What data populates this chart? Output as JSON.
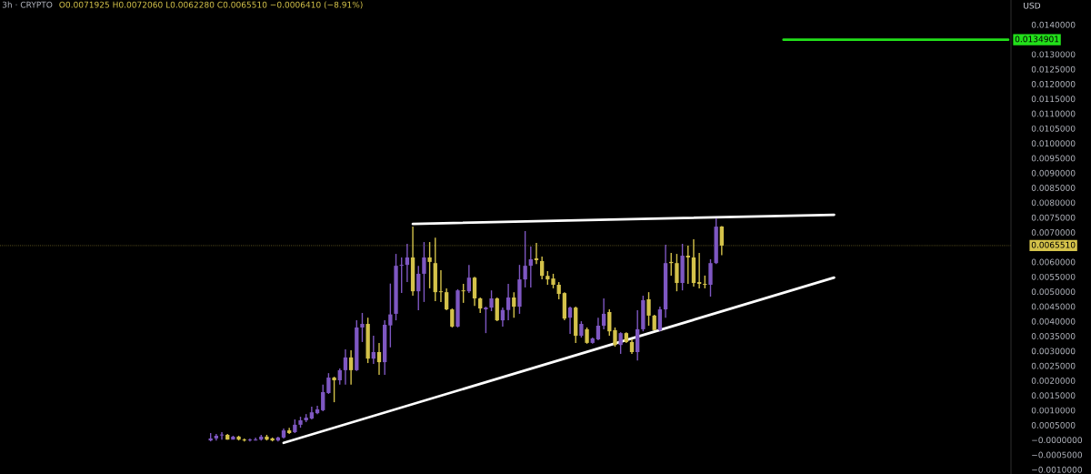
{
  "chart_data": {
    "type": "candlestick",
    "title": "3h · CRYPTO",
    "subtitle": "O0.0071925 H0.0072060 L0.0062280 C0.0065510 −0.0006410 (−8.91%)",
    "ylabel": "USD",
    "categories": [
      null,
      null,
      null,
      null,
      null,
      null,
      null,
      null,
      null,
      null,
      null,
      null,
      null,
      null,
      null,
      null,
      null,
      null,
      null,
      null,
      null,
      null,
      null,
      null,
      null,
      null,
      null,
      null,
      null,
      null,
      null,
      null,
      null,
      null,
      null,
      null,
      null,
      null,
      null,
      null,
      null,
      null,
      null,
      null,
      null,
      null,
      null,
      null,
      null,
      null,
      null,
      null,
      null,
      null,
      null,
      null,
      null,
      null,
      null,
      null,
      null,
      null,
      null,
      null,
      null,
      null,
      null,
      null,
      null,
      null,
      null,
      null,
      null,
      null,
      null,
      null,
      null,
      null,
      null,
      null,
      null,
      null,
      null,
      null,
      null,
      null,
      null,
      null,
      null,
      null,
      null,
      null,
      null,
      null,
      null,
      null,
      null,
      null,
      null,
      null,
      null,
      null,
      null,
      null,
      null,
      null,
      null,
      null,
      null,
      null,
      null,
      null,
      null,
      null,
      null,
      null,
      null,
      null,
      null,
      null,
      null,
      null,
      null,
      null,
      null,
      null,
      null,
      null,
      null,
      null,
      null,
      null,
      null,
      null,
      null,
      null,
      null,
      null,
      null,
      null,
      null,
      null,
      null,
      null,
      null,
      null,
      null,
      null,
      null,
      null,
      null,
      null,
      null,
      null,
      null,
      null,
      null,
      null,
      null,
      null,
      null,
      null,
      null,
      null,
      null,
      null,
      null,
      null,
      null,
      null,
      null,
      null,
      null,
      null,
      null,
      null,
      null,
      null,
      null,
      null
    ],
    "ohlc": [
      null,
      null,
      null,
      null,
      null,
      null,
      null,
      null,
      null,
      null,
      null,
      null,
      null,
      null,
      null,
      null,
      null,
      null,
      null,
      null,
      null,
      null,
      null,
      null,
      null,
      null,
      null,
      null,
      null,
      null,
      null,
      null,
      null,
      null,
      null,
      null,
      null,
      [
        -2e-05,
        0.00023,
        -5e-05,
        5e-05
      ],
      [
        5e-05,
        0.0002,
        -2e-05,
        0.00014
      ],
      [
        0.00015,
        0.00026,
        1e-05,
        0.00018
      ],
      [
        0.00017,
        0.0002,
        1e-05,
        1e-05
      ],
      [
        1e-05,
        0.00014,
        1e-05,
        0.00011
      ],
      [
        0.00011,
        0.00014,
        -2e-05,
        1e-05
      ],
      [
        1e-05,
        5e-05,
        -5e-05,
        -2e-05
      ],
      [
        -2e-05,
        5e-05,
        -5e-05,
        1e-05
      ],
      [
        -2e-05,
        8e-05,
        -2e-05,
        1e-05
      ],
      [
        1e-05,
        0.00017,
        -2e-05,
        0.00011
      ],
      [
        0.00011,
        0.00017,
        -2e-05,
        1e-05
      ],
      [
        5e-05,
        8e-05,
        -5e-05,
        -2e-05
      ],
      [
        -2e-05,
        0.00011,
        -5e-05,
        8e-05
      ],
      [
        8e-05,
        0.00038,
        5e-05,
        0.00032
      ],
      [
        0.00032,
        0.00041,
        0.0002,
        0.00023
      ],
      [
        0.00026,
        0.00069,
        0.00023,
        0.00051
      ],
      [
        0.00051,
        0.00078,
        0.00041,
        0.00066
      ],
      [
        0.00066,
        0.00087,
        0.0006,
        0.00075
      ],
      [
        0.00072,
        0.00112,
        0.00069,
        0.00093
      ],
      [
        0.0009,
        0.00115,
        0.00087,
        0.00103
      ],
      [
        0.001,
        0.00186,
        0.00097,
        0.00161
      ],
      [
        0.00158,
        0.00225,
        0.00155,
        0.0021
      ],
      [
        0.0021,
        0.00213,
        0.00127,
        0.00201
      ],
      [
        0.00201,
        0.00241,
        0.00186,
        0.00235
      ],
      [
        0.00235,
        0.00305,
        0.00186,
        0.00278
      ],
      [
        0.00278,
        0.00302,
        0.00186,
        0.00235
      ],
      [
        0.00235,
        0.00403,
        0.00232,
        0.00379
      ],
      [
        0.00379,
        0.00428,
        0.0033,
        0.00391
      ],
      [
        0.00391,
        0.00412,
        0.00259,
        0.00274
      ],
      [
        0.00274,
        0.00351,
        0.00256,
        0.00296
      ],
      [
        0.00296,
        0.00327,
        0.00219,
        0.00262
      ],
      [
        0.00262,
        0.00403,
        0.00219,
        0.00388
      ],
      [
        0.00386,
        0.00527,
        0.00312,
        0.00423
      ],
      [
        0.00425,
        0.00627,
        0.00403,
        0.00587
      ],
      [
        0.00587,
        0.00615,
        0.00495,
        0.0059
      ],
      [
        0.0059,
        0.00661,
        0.00532,
        0.00615
      ],
      [
        0.00615,
        0.00719,
        0.00486,
        0.00501
      ],
      [
        0.00501,
        0.00587,
        0.00437,
        0.0056
      ],
      [
        0.0056,
        0.00667,
        0.00465,
        0.00615
      ],
      [
        0.00615,
        0.00667,
        0.00511,
        0.006
      ],
      [
        0.00596,
        0.00682,
        0.00468,
        0.00498
      ],
      [
        0.00501,
        0.00572,
        0.00465,
        0.00498
      ],
      [
        0.00498,
        0.00511,
        0.00437,
        0.0044
      ],
      [
        0.0044,
        0.00443,
        0.00379,
        0.00382
      ],
      [
        0.00382,
        0.00508,
        0.00379,
        0.00504
      ],
      [
        0.00504,
        0.00526,
        0.00462,
        0.00501
      ],
      [
        0.00501,
        0.0059,
        0.00495,
        0.00547
      ],
      [
        0.00547,
        0.0055,
        0.00452,
        0.00477
      ],
      [
        0.00477,
        0.0048,
        0.00428,
        0.00443
      ],
      [
        0.0044,
        0.00449,
        0.0036,
        0.00446
      ],
      [
        0.00446,
        0.00504,
        0.00434,
        0.00477
      ],
      [
        0.00477,
        0.0048,
        0.004,
        0.00403
      ],
      [
        0.00403,
        0.00446,
        0.00382,
        0.00438
      ],
      [
        0.00438,
        0.00526,
        0.00403,
        0.0048
      ],
      [
        0.0048,
        0.00498,
        0.00412,
        0.00449
      ],
      [
        0.00449,
        0.0059,
        0.00425,
        0.00541
      ],
      [
        0.00541,
        0.00704,
        0.00514,
        0.00587
      ],
      [
        0.00587,
        0.00652,
        0.00514,
        0.00609
      ],
      [
        0.00612,
        0.00664,
        0.00593,
        0.00606
      ],
      [
        0.00603,
        0.00618,
        0.00541,
        0.00553
      ],
      [
        0.00553,
        0.00569,
        0.00523,
        0.00541
      ],
      [
        0.00544,
        0.0056,
        0.00511,
        0.00523
      ],
      [
        0.00523,
        0.00532,
        0.00474,
        0.00492
      ],
      [
        0.00495,
        0.00498,
        0.00403,
        0.00409
      ],
      [
        0.00412,
        0.00449,
        0.00357,
        0.00446
      ],
      [
        0.00446,
        0.00449,
        0.00327,
        0.00351
      ],
      [
        0.00351,
        0.004,
        0.00345,
        0.00391
      ],
      [
        0.00373,
        0.00379,
        0.00324,
        0.00327
      ],
      [
        0.00327,
        0.00345,
        0.00324,
        0.00342
      ],
      [
        0.00339,
        0.00412,
        0.00336,
        0.00385
      ],
      [
        0.00385,
        0.00477,
        0.00373,
        0.00425
      ],
      [
        0.00431,
        0.0044,
        0.00351,
        0.00366
      ],
      [
        0.0037,
        0.00379,
        0.00314,
        0.0032
      ],
      [
        0.0032,
        0.00363,
        0.0029,
        0.0036
      ],
      [
        0.0036,
        0.00363,
        0.00327,
        0.0033
      ],
      [
        0.0033,
        0.00339,
        0.0029,
        0.00296
      ],
      [
        0.00296,
        0.00437,
        0.00268,
        0.00373
      ],
      [
        0.00373,
        0.00486,
        0.00366,
        0.00471
      ],
      [
        0.00474,
        0.00498,
        0.00385,
        0.00419
      ],
      [
        0.00419,
        0.00422,
        0.0037,
        0.0037
      ],
      [
        0.0037,
        0.00449,
        0.00366,
        0.0044
      ],
      [
        0.0044,
        0.00658,
        0.00412,
        0.00596
      ],
      [
        0.006,
        0.0063,
        0.00554,
        0.00596
      ],
      [
        0.00596,
        0.00627,
        0.00501,
        0.00529
      ],
      [
        0.00529,
        0.00661,
        0.00504,
        0.00621
      ],
      [
        0.00621,
        0.00655,
        0.00526,
        0.00615
      ],
      [
        0.00615,
        0.00676,
        0.00517,
        0.00529
      ],
      [
        0.00532,
        0.0063,
        0.00511,
        0.00526
      ],
      [
        0.00526,
        0.00554,
        0.00511,
        0.00523
      ],
      [
        0.00523,
        0.00609,
        0.00483,
        0.00596
      ],
      [
        0.00596,
        0.00747,
        0.00593,
        0.00719
      ],
      [
        0.0071925,
        0.007206,
        0.006228,
        0.006551
      ],
      null,
      null,
      null,
      null,
      null,
      null,
      null,
      null,
      null,
      null,
      null,
      null,
      null,
      null,
      null,
      null,
      null,
      null,
      null,
      null,
      null,
      null,
      null,
      null,
      null,
      null,
      null,
      null,
      null,
      null,
      null,
      null,
      null,
      null,
      null,
      null,
      null,
      null,
      null,
      null,
      null,
      null,
      null,
      null,
      null,
      null,
      null,
      null,
      null,
      null,
      null
    ],
    "colors": [
      null,
      null,
      null,
      null,
      null,
      null,
      null,
      null,
      null,
      null,
      null,
      null,
      null,
      null,
      null,
      null,
      null,
      null,
      null,
      null,
      null,
      null,
      null,
      null,
      null,
      null,
      null,
      null,
      null,
      null,
      null,
      null,
      null,
      null,
      null,
      null,
      null,
      "#7e57c2",
      "#7e57c2",
      "#7e57c2",
      "#d4c24a",
      "#7e57c2",
      "#d4c24a",
      "#d4c24a",
      "#7e57c2",
      "#7e57c2",
      "#7e57c2",
      "#d4c24a",
      "#d4c24a",
      "#7e57c2",
      "#7e57c2",
      "#d4c24a",
      "#7e57c2",
      "#7e57c2",
      "#7e57c2",
      "#7e57c2",
      "#7e57c2",
      "#7e57c2",
      "#7e57c2",
      "#d4c24a",
      "#7e57c2",
      "#7e57c2",
      "#d4c24a",
      "#7e57c2",
      "#7e57c2",
      "#d4c24a",
      "#7e57c2",
      "#d4c24a",
      "#7e57c2",
      "#7e57c2",
      "#7e57c2",
      "#7e57c2",
      "#7e57c2",
      "#d4c24a",
      "#7e57c2",
      "#7e57c2",
      "#d4c24a",
      "#d4c24a",
      "#d4c24a",
      "#d4c24a",
      "#d4c24a",
      "#7e57c2",
      "#d4c24a",
      "#7e57c2",
      "#d4c24a",
      "#d4c24a",
      "#7e57c2",
      "#7e57c2",
      "#d4c24a",
      "#7e57c2",
      "#7e57c2",
      "#d4c24a",
      "#7e57c2",
      "#7e57c2",
      "#7e57c2",
      "#d4c24a",
      "#d4c24a",
      "#d4c24a",
      "#d4c24a",
      "#d4c24a",
      "#d4c24a",
      "#7e57c2",
      "#d4c24a",
      "#7e57c2",
      "#d4c24a",
      "#7e57c2",
      "#7e57c2",
      "#7e57c2",
      "#d4c24a",
      "#d4c24a",
      "#7e57c2",
      "#d4c24a",
      "#d4c24a",
      "#7e57c2",
      "#7e57c2",
      "#d4c24a",
      "#d4c24a",
      "#7e57c2",
      "#7e57c2",
      "#d4c24a",
      "#d4c24a",
      "#7e57c2",
      "#d4c24a",
      "#d4c24a",
      "#d4c24a",
      "#d4c24a",
      "#7e57c2",
      "#7e57c2",
      "#d4c24a",
      null,
      null,
      null,
      null,
      null,
      null,
      null,
      null,
      null,
      null,
      null,
      null,
      null,
      null,
      null,
      null,
      null,
      null,
      null,
      null,
      null,
      null,
      null,
      null,
      null,
      null,
      null,
      null,
      null,
      null,
      null,
      null,
      null,
      null,
      null,
      null,
      null,
      null,
      null,
      null,
      null,
      null,
      null,
      null,
      null,
      null,
      null,
      null,
      null,
      null,
      null
    ],
    "series": [
      {
        "type": "line",
        "color": "#ffffff",
        "values": [
          null,
          null,
          null,
          null,
          null,
          null,
          null,
          null,
          null,
          null,
          null,
          null,
          null,
          null,
          null,
          null,
          null,
          null,
          null,
          null,
          null,
          null,
          null,
          null,
          null,
          null,
          null,
          null,
          null,
          null,
          null,
          null,
          null,
          null,
          null,
          null,
          null,
          null,
          null,
          null,
          null,
          null,
          null,
          null,
          null,
          null,
          null,
          null,
          null,
          null,
          null,
          null,
          null,
          null,
          null,
          null,
          null,
          null,
          null,
          null,
          null,
          null,
          null,
          null,
          null,
          null,
          null,
          null,
          null,
          null,
          null,
          null,
          null,
          0.00728,
          null,
          null,
          null,
          null,
          null,
          null,
          null,
          null,
          null,
          null,
          null,
          null,
          null,
          null,
          null,
          null,
          null,
          null,
          null,
          null,
          null,
          null,
          null,
          null,
          null,
          null,
          null,
          null,
          null,
          null,
          null,
          null,
          null,
          null,
          null,
          null,
          null,
          null,
          null,
          null,
          null,
          null,
          null,
          null,
          null,
          null,
          null,
          null,
          null,
          null,
          null,
          null,
          null,
          null,
          null,
          null,
          null,
          null,
          null,
          null,
          null,
          null,
          null,
          null,
          null,
          null,
          null,
          null,
          null,
          null,
          null,
          null,
          null,
          null,
          0.00759,
          null,
          null,
          null,
          null,
          null,
          null,
          null,
          null,
          null,
          null,
          null,
          null,
          null,
          null,
          null,
          null,
          null,
          null,
          null,
          null,
          null,
          null,
          null,
          null,
          null,
          null,
          null,
          null,
          null,
          null,
          null
        ]
      },
      {
        "type": "line",
        "color": "#ffffff",
        "values": [
          null,
          null,
          null,
          null,
          null,
          null,
          null,
          null,
          null,
          null,
          null,
          null,
          null,
          null,
          null,
          null,
          null,
          null,
          null,
          null,
          null,
          null,
          null,
          null,
          null,
          null,
          null,
          null,
          null,
          null,
          null,
          null,
          null,
          null,
          null,
          null,
          null,
          null,
          null,
          null,
          null,
          null,
          null,
          null,
          null,
          null,
          null,
          null,
          null,
          null,
          -0.0001,
          null,
          null,
          null,
          null,
          null,
          null,
          null,
          null,
          null,
          null,
          null,
          null,
          null,
          null,
          null,
          null,
          null,
          null,
          null,
          null,
          null,
          null,
          null,
          null,
          null,
          null,
          null,
          null,
          null,
          null,
          null,
          null,
          null,
          null,
          null,
          null,
          null,
          null,
          null,
          null,
          null,
          null,
          null,
          null,
          null,
          null,
          null,
          null,
          null,
          null,
          null,
          null,
          null,
          null,
          null,
          null,
          null,
          null,
          null,
          null,
          null,
          null,
          null,
          null,
          null,
          null,
          null,
          null,
          null,
          null,
          null,
          null,
          null,
          null,
          null,
          null,
          null,
          null,
          null,
          null,
          null,
          null,
          null,
          null,
          null,
          null,
          null,
          null,
          null,
          null,
          null,
          null,
          null,
          null,
          null,
          null,
          null,
          0.00547,
          null,
          null,
          null,
          null,
          null,
          null,
          null,
          null,
          null,
          null,
          null,
          null,
          null,
          null,
          null,
          null,
          null,
          null,
          null,
          null,
          null,
          null,
          null,
          null,
          null,
          null,
          null,
          null,
          null,
          null,
          null
        ]
      },
      {
        "type": "line",
        "color": "#22e01a",
        "values": [
          null,
          null,
          null,
          null,
          null,
          null,
          null,
          null,
          null,
          null,
          null,
          null,
          null,
          null,
          null,
          null,
          null,
          null,
          null,
          null,
          null,
          null,
          null,
          null,
          null,
          null,
          null,
          null,
          null,
          null,
          null,
          null,
          null,
          null,
          null,
          null,
          null,
          null,
          null,
          null,
          null,
          null,
          null,
          null,
          null,
          null,
          null,
          null,
          null,
          null,
          null,
          null,
          null,
          null,
          null,
          null,
          null,
          null,
          null,
          null,
          null,
          null,
          null,
          null,
          null,
          null,
          null,
          null,
          null,
          null,
          null,
          null,
          null,
          null,
          null,
          null,
          null,
          null,
          null,
          null,
          null,
          null,
          null,
          null,
          null,
          null,
          null,
          null,
          null,
          null,
          null,
          null,
          null,
          null,
          null,
          null,
          null,
          null,
          null,
          null,
          null,
          null,
          null,
          null,
          null,
          null,
          null,
          null,
          null,
          null,
          null,
          null,
          null,
          null,
          null,
          null,
          null,
          null,
          null,
          null,
          null,
          null,
          null,
          null,
          null,
          null,
          null,
          null,
          null,
          null,
          null,
          null,
          null,
          null,
          null,
          null,
          null,
          null,
          null,
          0.0134901,
          null,
          null,
          null,
          null,
          null,
          null,
          null,
          null,
          null,
          null,
          null,
          null,
          null,
          null,
          null,
          null,
          null,
          null,
          null,
          null,
          null,
          null,
          null,
          null,
          null,
          null,
          null,
          null,
          null,
          null,
          null,
          null,
          null,
          null,
          null,
          null,
          null,
          null,
          null,
          0.0134901
        ],
        "value_labels": [
          null,
          null,
          null,
          null,
          null,
          null,
          null,
          null,
          null,
          null,
          null,
          null,
          null,
          null,
          null,
          null,
          null,
          null,
          null,
          null,
          null,
          null,
          null,
          null,
          null,
          null,
          null,
          null,
          null,
          null,
          null,
          null,
          null,
          null,
          null,
          null,
          null,
          null,
          null,
          null,
          null,
          null,
          null,
          null,
          null,
          null,
          null,
          null,
          null,
          null,
          null,
          null,
          null,
          null,
          null,
          null,
          null,
          null,
          null,
          null,
          null,
          null,
          null,
          null,
          null,
          null,
          null,
          null,
          null,
          null,
          null,
          null,
          null,
          null,
          null,
          null,
          null,
          null,
          null,
          null,
          null,
          null,
          null,
          null,
          null,
          null,
          null,
          null,
          null,
          null,
          null,
          null,
          null,
          null,
          null,
          null,
          null,
          null,
          null,
          null,
          null,
          null,
          null,
          null,
          null,
          null,
          null,
          null,
          null,
          null,
          null,
          null,
          null,
          null,
          null,
          null,
          null,
          null,
          null,
          null,
          null,
          null,
          null,
          null,
          null,
          null,
          null,
          null,
          null,
          null,
          null,
          null,
          null,
          null,
          null,
          null,
          null,
          null,
          null,
          null,
          null,
          null,
          null,
          null,
          null,
          null,
          null,
          null,
          null,
          null,
          null,
          null,
          null,
          null,
          null,
          null,
          null,
          null,
          null,
          null,
          null,
          null,
          null,
          null,
          null,
          null,
          null,
          null,
          null,
          null,
          null,
          null,
          null,
          null,
          null,
          null,
          null,
          null,
          null,
          "0.0134901"
        ]
      }
    ],
    "ref_lines": [
      {
        "axis": "y",
        "value": 0.006551,
        "label": "0.0065510",
        "color": "#d4c24a",
        "line_style": "dotted"
      }
    ],
    "ylim": [
      -0.00115,
      0.01483
    ],
    "yticks": [
      {
        "value": 0.014,
        "label": "0.0140000"
      },
      {
        "value": 0.013,
        "label": "0.0130000"
      },
      {
        "value": 0.0125,
        "label": "0.0125000"
      },
      {
        "value": 0.012,
        "label": "0.0120000"
      },
      {
        "value": 0.0115,
        "label": "0.0115000"
      },
      {
        "value": 0.011,
        "label": "0.0110000"
      },
      {
        "value": 0.0105,
        "label": "0.0105000"
      },
      {
        "value": 0.01,
        "label": "0.0100000"
      },
      {
        "value": 0.0095,
        "label": "0.0095000"
      },
      {
        "value": 0.009,
        "label": "0.0090000"
      },
      {
        "value": 0.0085,
        "label": "0.0085000"
      },
      {
        "value": 0.008,
        "label": "0.0080000"
      },
      {
        "value": 0.0075,
        "label": "0.0075000"
      },
      {
        "value": 0.007,
        "label": "0.0070000"
      },
      {
        "value": 0.006,
        "label": "0.0060000"
      },
      {
        "value": 0.0055,
        "label": "0.0055000"
      },
      {
        "value": 0.005,
        "label": "0.0050000"
      },
      {
        "value": 0.0045,
        "label": "0.0045000"
      },
      {
        "value": 0.004,
        "label": "0.0040000"
      },
      {
        "value": 0.0035,
        "label": "0.0035000"
      },
      {
        "value": 0.003,
        "label": "0.0030000"
      },
      {
        "value": 0.0025,
        "label": "0.0025000"
      },
      {
        "value": 0.002,
        "label": "0.0020000"
      },
      {
        "value": 0.0015,
        "label": "0.0015000"
      },
      {
        "value": 0.001,
        "label": "0.0010000"
      },
      {
        "value": 0.0005,
        "label": "0.0005000"
      },
      {
        "value": 0,
        "label": "−0.0000000"
      },
      {
        "value": -0.0005,
        "label": "−0.0005000"
      },
      {
        "value": -0.001,
        "label": "−0.0010000"
      }
    ],
    "tick_labels": "y",
    "grid": false,
    "legend": false
  }
}
